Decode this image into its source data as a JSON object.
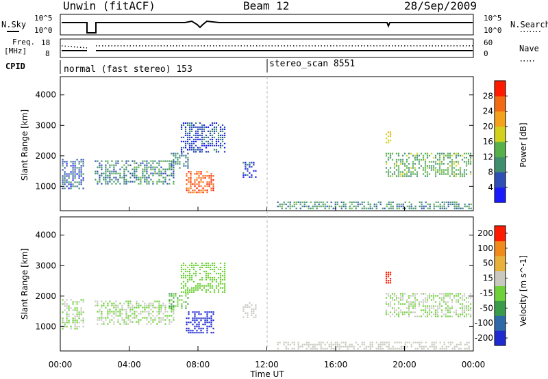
{
  "header": {
    "station": "Unwin (fitACF)",
    "beam": "Beam 12",
    "date": "28/Sep/2009"
  },
  "small_panels": {
    "nsky_label": "N.Sky",
    "freq_label": "Freq.",
    "freq_unit": "[MHz]",
    "cpid_label": "CPID",
    "nsearch_label": "N.Search",
    "nave_label": "Nave",
    "noise_left_ticks": [
      "10^5",
      "10^0"
    ],
    "noise_right_ticks": [
      "10^5",
      "10^0"
    ],
    "freq_left_ticks": [
      "18",
      "8"
    ],
    "nave_right_ticks": [
      "60",
      "0"
    ],
    "cpid_segments": [
      "normal (fast stereo) 153",
      "stereo_scan 8551"
    ]
  },
  "colors": {
    "power_scale": [
      "#1a1aff",
      "#2e4fb5",
      "#3f8f6f",
      "#58b04a",
      "#d2d21e",
      "#f5a21b",
      "#f26a14",
      "#ff1a00"
    ],
    "velocity_scale": [
      "#1f2ad0",
      "#2f6aa8",
      "#3a9c4a",
      "#6fd13a",
      "#c9c9c0",
      "#e8b23a",
      "#f08a1a",
      "#ff1a00"
    ]
  },
  "chart_data": [
    {
      "type": "heatmap",
      "name": "power-panel",
      "ylabel": "Slant Range [km]",
      "xlabel": "",
      "yticks": [
        "1000",
        "2000",
        "3000",
        "4000"
      ],
      "ylim": [
        200,
        4600
      ],
      "xlim_hours": [
        0,
        24
      ],
      "colorbar_label": "Power [dB]",
      "colorbar_ticks": [
        "4",
        "8",
        "12",
        "16",
        "20",
        "24",
        "28"
      ],
      "colorbar_range": [
        0,
        32
      ],
      "regions": [
        {
          "t0": 0.1,
          "t1": 1.4,
          "r0": 950,
          "r1": 1900,
          "v": 7
        },
        {
          "t0": 2.0,
          "t1": 6.6,
          "r0": 1050,
          "r1": 1850,
          "v": 10
        },
        {
          "t0": 6.3,
          "t1": 7.4,
          "r0": 1600,
          "r1": 2100,
          "v": 9
        },
        {
          "t0": 7.0,
          "t1": 9.6,
          "r0": 2100,
          "r1": 3100,
          "v": 6
        },
        {
          "t0": 7.3,
          "t1": 8.9,
          "r0": 800,
          "r1": 1500,
          "v": 27
        },
        {
          "t0": 10.6,
          "t1": 11.4,
          "r0": 1300,
          "r1": 1800,
          "v": 5
        },
        {
          "t0": 12.6,
          "t1": 23.9,
          "r0": 250,
          "r1": 500,
          "v": 10
        },
        {
          "t0": 18.9,
          "t1": 23.9,
          "r0": 1300,
          "r1": 2100,
          "v": 13
        },
        {
          "t0": 18.9,
          "t1": 19.2,
          "r0": 2400,
          "r1": 2800,
          "v": 18
        }
      ]
    },
    {
      "type": "heatmap",
      "name": "velocity-panel",
      "ylabel": "Slant Range [km]",
      "xlabel": "Time UT",
      "yticks": [
        "1000",
        "2000",
        "3000",
        "4000"
      ],
      "xticks": [
        "00:00",
        "04:00",
        "08:00",
        "12:00",
        "16:00",
        "20:00",
        "00:00"
      ],
      "ylim": [
        200,
        4600
      ],
      "xlim_hours": [
        0,
        24
      ],
      "colorbar_label": "Velocity [m s^-1]",
      "colorbar_ticks": [
        "200",
        "100",
        "50",
        "15",
        "-15",
        "-50",
        "-100",
        "-200"
      ],
      "colorbar_range": [
        -250,
        250
      ],
      "regions": [
        {
          "t0": 0.1,
          "t1": 1.4,
          "r0": 950,
          "r1": 1900,
          "v": 0
        },
        {
          "t0": 2.0,
          "t1": 6.6,
          "r0": 1050,
          "r1": 1850,
          "v": 0
        },
        {
          "t0": 6.3,
          "t1": 7.4,
          "r0": 1600,
          "r1": 2100,
          "v": -60
        },
        {
          "t0": 7.0,
          "t1": 9.6,
          "r0": 2100,
          "r1": 3100,
          "v": -40
        },
        {
          "t0": 7.3,
          "t1": 8.9,
          "r0": 800,
          "r1": 1500,
          "v": -220
        },
        {
          "t0": 10.6,
          "t1": 11.4,
          "r0": 1300,
          "r1": 1800,
          "v": 40
        },
        {
          "t0": 12.6,
          "t1": 23.9,
          "r0": 250,
          "r1": 500,
          "v": 30
        },
        {
          "t0": 18.9,
          "t1": 23.9,
          "r0": 1300,
          "r1": 2100,
          "v": 0
        },
        {
          "t0": 18.9,
          "t1": 19.2,
          "r0": 2400,
          "r1": 2800,
          "v": 210
        }
      ]
    }
  ]
}
